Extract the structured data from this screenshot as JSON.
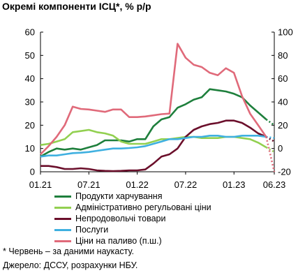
{
  "page": {
    "title": "Окремі компоненти ІСЦ*, % р/р"
  },
  "chart_data": {
    "type": "line",
    "title": "Окремі компоненти ІСЦ*, % р/р",
    "x_tick_labels": [
      "01.21",
      "07.21",
      "01.22",
      "07.22",
      "01.23",
      "06.23"
    ],
    "x_months": [
      "2021-01",
      "2021-02",
      "2021-03",
      "2021-04",
      "2021-05",
      "2021-06",
      "2021-07",
      "2021-08",
      "2021-09",
      "2021-10",
      "2021-11",
      "2021-12",
      "2022-01",
      "2022-02",
      "2022-03",
      "2022-04",
      "2022-05",
      "2022-06",
      "2022-07",
      "2022-08",
      "2022-09",
      "2022-10",
      "2022-11",
      "2022-12",
      "2023-01",
      "2023-02",
      "2023-03",
      "2023-04",
      "2023-05",
      "2023-06"
    ],
    "y_left": {
      "range": [
        0,
        60
      ],
      "ticks": [
        0,
        10,
        20,
        30,
        40,
        50,
        60
      ]
    },
    "y_right": {
      "range": [
        -20,
        100
      ],
      "ticks": [
        -20,
        0,
        20,
        40,
        60,
        80,
        100
      ],
      "note": "п.ш."
    },
    "grid": false,
    "legend_position": "bottom",
    "nowcast_month": "2023-06",
    "series": [
      {
        "name": "Продукти харчування",
        "color": "#1e7f3c",
        "axis": "left",
        "values": [
          6.5,
          8.5,
          10,
          9.5,
          10,
          9.5,
          10.5,
          11.5,
          13.5,
          13.5,
          13.5,
          13,
          14,
          14,
          19.5,
          22.5,
          23.5,
          27.5,
          29,
          31,
          32,
          35.5,
          35,
          34.5,
          33.5,
          32,
          28.5,
          25.5,
          22.5,
          20
        ]
      },
      {
        "name": "Адміністративно регульовані ціни",
        "color": "#92d050",
        "axis": "left",
        "values": [
          11.5,
          12,
          13,
          14,
          17,
          17.5,
          18,
          17,
          16.5,
          15.5,
          13,
          12,
          12,
          12,
          13,
          14,
          14,
          14.5,
          15,
          15,
          14.5,
          14.5,
          14.5,
          15,
          15,
          14.5,
          14,
          12.5,
          10.5,
          8.5
        ]
      },
      {
        "name": "Непродовольчі товари",
        "color": "#6b0f2b",
        "axis": "left",
        "values": [
          2.5,
          2.5,
          2,
          1.2,
          1.2,
          1.5,
          1.2,
          0.6,
          0.4,
          0.3,
          0.4,
          0.6,
          0.6,
          1,
          3.5,
          6.5,
          7.5,
          10,
          15,
          18,
          19.5,
          20.5,
          21,
          22,
          22,
          21,
          19,
          16.5,
          15,
          13
        ]
      },
      {
        "name": "Послуги",
        "color": "#3fb0e0",
        "axis": "left",
        "values": [
          6.5,
          7,
          7,
          7.5,
          8,
          8.2,
          8.5,
          9,
          9.5,
          10,
          10,
          10.2,
          10.5,
          11,
          12,
          13,
          14,
          14,
          14.5,
          15,
          15,
          15.5,
          15.5,
          15,
          15,
          15.5,
          15.5,
          15.5,
          15,
          14.5
        ]
      },
      {
        "name": "Ціни на паливо (п.ш.)",
        "color": "#e06a7a",
        "axis": "right",
        "values": [
          -5,
          2,
          10,
          20,
          36,
          34,
          33.5,
          32.5,
          31.5,
          33.5,
          33.5,
          27,
          27,
          27.5,
          28.5,
          29.5,
          30,
          90,
          78,
          72,
          70,
          65,
          63,
          69,
          65,
          45,
          30,
          20,
          10,
          -20
        ]
      }
    ]
  },
  "legend": {
    "items": [
      {
        "label": "Продукти харчування",
        "color": "#1e7f3c"
      },
      {
        "label": "Адміністративно регульовані ціни",
        "color": "#92d050"
      },
      {
        "label": "Непродовольчі товари",
        "color": "#6b0f2b"
      },
      {
        "label": "Послуги",
        "color": "#3fb0e0"
      },
      {
        "label": "Ціни на паливо (п.ш.)",
        "color": "#e06a7a"
      }
    ]
  },
  "notes": {
    "footnote": "* Червень – за даними наукасту.",
    "source": "Джерело: ДССУ, розрахунки НБУ."
  }
}
